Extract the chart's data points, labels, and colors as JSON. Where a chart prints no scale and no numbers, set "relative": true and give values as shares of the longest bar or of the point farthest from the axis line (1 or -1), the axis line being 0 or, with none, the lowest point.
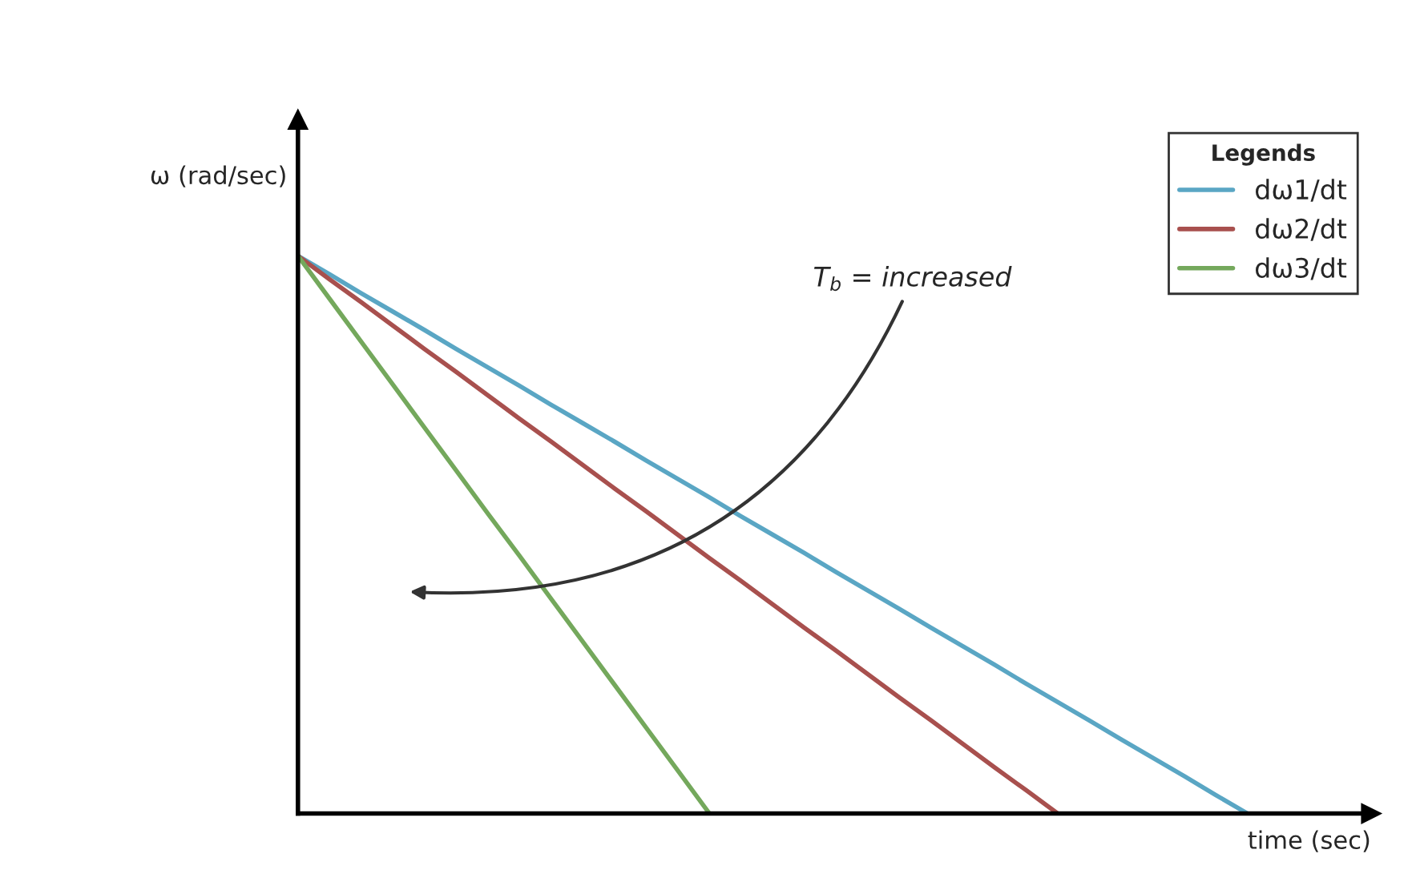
{
  "chart_data": {
    "type": "line",
    "relative": true,
    "xlabel": "time (sec)",
    "ylabel": "ω (rad/sec)",
    "legend_title": "Legends",
    "legend": "top right",
    "categories": [
      null,
      null,
      null,
      null,
      null,
      null,
      null,
      null,
      null,
      null,
      null,
      null,
      null,
      null,
      null,
      null,
      null,
      null,
      null,
      null,
      null,
      null,
      null,
      null,
      null,
      null,
      null,
      null,
      null,
      null,
      null
    ],
    "series": [
      {
        "name": "dω1/dt",
        "color": "#5aa6c4",
        "values": [
          1,
          0.967,
          0.933,
          0.9,
          0.867,
          0.833,
          0.8,
          0.767,
          0.733,
          0.7,
          0.667,
          0.633,
          0.6,
          0.567,
          0.533,
          0.5,
          0.467,
          0.433,
          0.4,
          0.367,
          0.333,
          0.3,
          0.267,
          0.233,
          0.2,
          0.167,
          0.133,
          0.1,
          0.067,
          0.033,
          0
        ]
      },
      {
        "name": "dω2/dt",
        "color": "#a8504e",
        "values": [
          1,
          0.958,
          0.917,
          0.875,
          0.833,
          0.792,
          0.75,
          0.708,
          0.667,
          0.625,
          0.583,
          0.542,
          0.5,
          0.458,
          0.417,
          0.375,
          0.333,
          0.292,
          0.25,
          0.208,
          0.167,
          0.125,
          0.083,
          0.042,
          0,
          null,
          null,
          null,
          null,
          null,
          null
        ]
      },
      {
        "name": "dω3/dt",
        "color": "#74a85c",
        "values": [
          1,
          0.923,
          0.846,
          0.769,
          0.692,
          0.615,
          0.538,
          0.462,
          0.385,
          0.308,
          0.231,
          0.154,
          0.077,
          0,
          null,
          null,
          null,
          null,
          null,
          null,
          null,
          null,
          null,
          null,
          null,
          null,
          null,
          null,
          null,
          null,
          null
        ]
      }
    ],
    "annotations": [
      "T$_{b}$ = increased"
    ]
  }
}
